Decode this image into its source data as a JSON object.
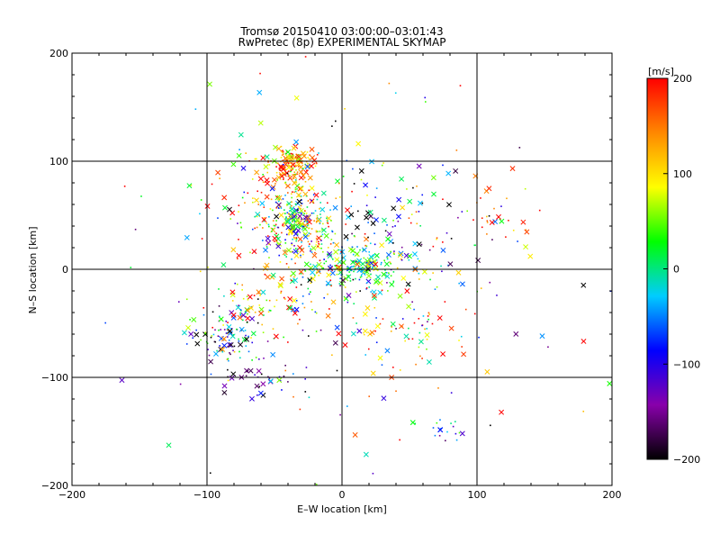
{
  "chart_data": {
    "type": "scatter",
    "title": "Tromsø 20150410 03:00:00–03:01:43",
    "subtitle": "RwPretec (8p) EXPERIMENTAL SKYMAP",
    "xlabel": "E–W location [km]",
    "ylabel": "N–S location [km]",
    "xlim": [
      -200,
      200
    ],
    "ylim": [
      -200,
      200
    ],
    "xticks": [
      -200,
      -100,
      0,
      100,
      200
    ],
    "yticks": [
      -200,
      -100,
      0,
      100,
      200
    ],
    "grid": true,
    "colorbar": {
      "label": "[m/s]",
      "range": [
        -200,
        200
      ],
      "ticks": [
        200,
        100,
        0,
        -100,
        -200
      ],
      "colors": [
        "#000000",
        "#8800aa",
        "#0000ff",
        "#00ccff",
        "#00ff00",
        "#ffff00",
        "#ff8800",
        "#ff0000"
      ]
    },
    "marker_legend": [
      "x",
      "dot"
    ],
    "clusters": [
      {
        "cx": -38,
        "cy": 98,
        "sx": 9,
        "sy": 8,
        "n": 140,
        "v": 150,
        "vs": 50
      },
      {
        "cx": -35,
        "cy": 45,
        "sx": 13,
        "sy": 14,
        "n": 200,
        "v": 20,
        "vs": 90
      },
      {
        "cx": -50,
        "cy": 68,
        "sx": 20,
        "sy": 18,
        "n": 90,
        "v": 120,
        "vs": 80
      },
      {
        "cx": 10,
        "cy": 0,
        "sx": 20,
        "sy": 10,
        "n": 170,
        "v": 0,
        "vs": 50
      },
      {
        "cx": -25,
        "cy": 15,
        "sx": 28,
        "sy": 18,
        "n": 90,
        "v": 120,
        "vs": 90
      },
      {
        "cx": -55,
        "cy": -35,
        "sx": 22,
        "sy": 18,
        "n": 100,
        "v": 80,
        "vs": 110
      },
      {
        "cx": -85,
        "cy": -60,
        "sx": 12,
        "sy": 12,
        "n": 90,
        "v": -60,
        "vs": 110
      },
      {
        "cx": -60,
        "cy": -100,
        "sx": 18,
        "sy": 8,
        "n": 40,
        "v": -150,
        "vs": 70
      },
      {
        "cx": 28,
        "cy": 35,
        "sx": 30,
        "sy": 25,
        "n": 90,
        "v": -100,
        "vs": 120
      },
      {
        "cx": 55,
        "cy": -60,
        "sx": 25,
        "sy": 22,
        "n": 70,
        "v": 100,
        "vs": 110
      },
      {
        "cx": 78,
        "cy": -150,
        "sx": 8,
        "sy": 5,
        "n": 18,
        "v": -60,
        "vs": 60
      },
      {
        "cx": 105,
        "cy": 45,
        "sx": 20,
        "sy": 18,
        "n": 35,
        "v": 150,
        "vs": 80
      },
      {
        "cx": 0,
        "cy": 0,
        "sx": 75,
        "sy": 85,
        "n": 200,
        "v": 0,
        "vs": 140
      }
    ]
  }
}
